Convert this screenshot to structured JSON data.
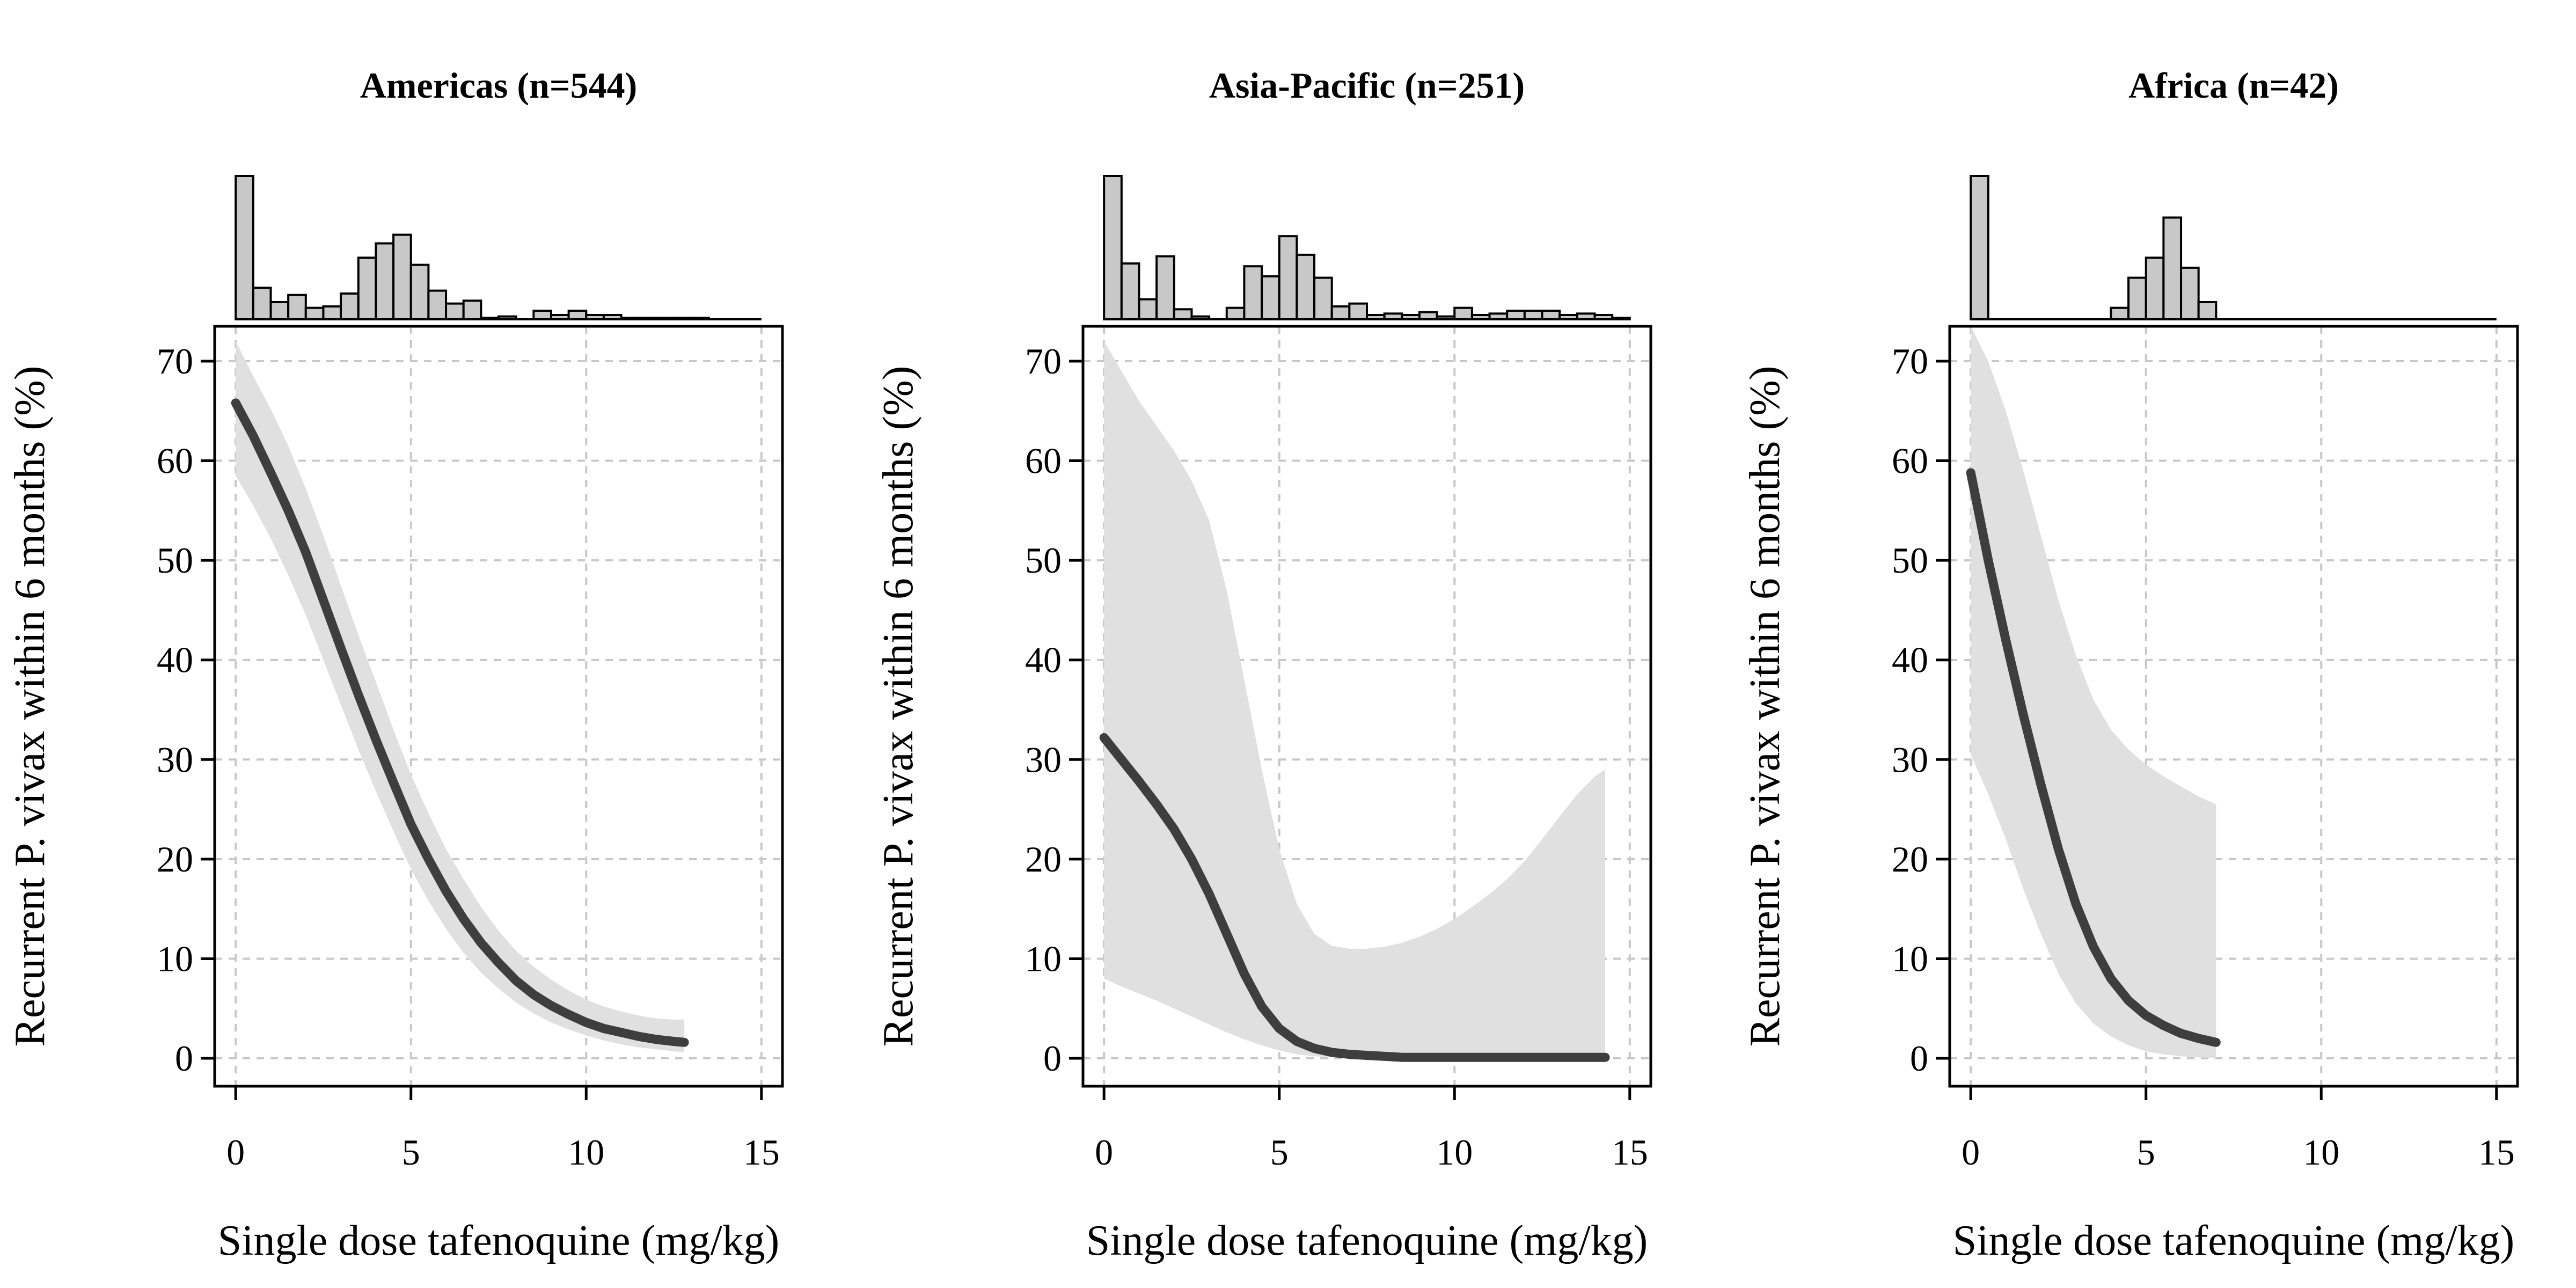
{
  "chart_data": [
    {
      "type": "line",
      "title": "Americas (n=544)",
      "xlabel": "Single dose tafenoquine (mg/kg)",
      "ylabel": "Recurrent P. vivax within 6 months (%)",
      "xlim": [
        -0.6,
        15.6
      ],
      "ylim": [
        -2.8,
        73.5
      ],
      "x_ticks": [
        0,
        5,
        10,
        15
      ],
      "y_ticks": [
        0,
        10,
        20,
        30,
        40,
        50,
        60,
        70
      ],
      "grid": true,
      "series": [
        {
          "x": [
            0,
            0.5,
            1,
            1.5,
            2,
            2.5,
            3,
            3.5,
            4,
            4.5,
            5,
            5.5,
            6,
            6.5,
            7,
            7.5,
            8,
            8.5,
            9,
            9.5,
            10,
            10.5,
            11,
            11.5,
            12,
            12.5,
            12.8
          ],
          "y": [
            65.8,
            62.5,
            58.8,
            55.0,
            50.8,
            46.0,
            41.2,
            36.5,
            32.0,
            27.7,
            23.5,
            20.0,
            16.8,
            14.0,
            11.6,
            9.6,
            7.8,
            6.4,
            5.3,
            4.4,
            3.6,
            3.0,
            2.6,
            2.2,
            1.9,
            1.7,
            1.6
          ],
          "lower": [
            58.5,
            55.5,
            52.2,
            48.5,
            44.5,
            40.0,
            35.5,
            31.0,
            26.8,
            22.8,
            19.0,
            15.8,
            13.0,
            10.6,
            8.6,
            7.0,
            5.6,
            4.5,
            3.6,
            2.9,
            2.3,
            1.8,
            1.4,
            1.1,
            0.9,
            0.7,
            0.6
          ],
          "upper": [
            72.0,
            68.5,
            65.2,
            61.5,
            57.2,
            52.5,
            47.5,
            42.5,
            37.8,
            33.0,
            28.5,
            24.6,
            21.0,
            18.0,
            15.2,
            12.8,
            10.8,
            9.2,
            7.9,
            6.8,
            5.9,
            5.2,
            4.7,
            4.3,
            4.0,
            3.9,
            3.9
          ]
        }
      ],
      "histogram": {
        "bin_width": 0.5,
        "counts": [
          100,
          22,
          12,
          17,
          8,
          9,
          18,
          43,
          53,
          59,
          38,
          20,
          11,
          13,
          1,
          2,
          0,
          6,
          3,
          6,
          3,
          3,
          1,
          1,
          1,
          1,
          1,
          0,
          0,
          0
        ]
      }
    },
    {
      "type": "line",
      "title": "Asia-Pacific (n=251)",
      "xlabel": "Single dose tafenoquine (mg/kg)",
      "ylabel": "Recurrent P. vivax within 6 months (%)",
      "xlim": [
        -0.6,
        15.6
      ],
      "ylim": [
        -2.8,
        73.5
      ],
      "x_ticks": [
        0,
        5,
        10,
        15
      ],
      "y_ticks": [
        0,
        10,
        20,
        30,
        40,
        50,
        60,
        70
      ],
      "grid": true,
      "series": [
        {
          "x": [
            0,
            0.5,
            1,
            1.5,
            2,
            2.5,
            3,
            3.5,
            4,
            4.5,
            5,
            5.5,
            6,
            6.5,
            7,
            7.5,
            8,
            8.5,
            9,
            9.5,
            10,
            10.5,
            11,
            11.5,
            12,
            12.5,
            13,
            13.5,
            14,
            14.3
          ],
          "y": [
            32.2,
            30.0,
            27.8,
            25.5,
            23.0,
            20.0,
            16.5,
            12.5,
            8.5,
            5.2,
            3.0,
            1.7,
            1.0,
            0.6,
            0.4,
            0.3,
            0.2,
            0.1,
            0.1,
            0.1,
            0.1,
            0.1,
            0.1,
            0.1,
            0.1,
            0.1,
            0.1,
            0.1,
            0.1,
            0.1
          ],
          "lower": [
            8.0,
            7.2,
            6.5,
            5.8,
            5.0,
            4.2,
            3.4,
            2.6,
            1.9,
            1.3,
            0.8,
            0.4,
            0.2,
            0.1,
            0.05,
            0,
            0,
            0,
            0,
            0,
            0,
            0,
            0,
            0,
            0,
            0,
            0,
            0,
            0,
            0
          ],
          "upper": [
            72.0,
            69.0,
            66.0,
            63.5,
            61.0,
            58.0,
            54.0,
            47.0,
            38.0,
            29.0,
            21.0,
            15.5,
            12.5,
            11.3,
            11.0,
            11.0,
            11.2,
            11.6,
            12.2,
            13.0,
            14.0,
            15.2,
            16.5,
            18.0,
            19.8,
            22.0,
            24.3,
            26.5,
            28.3,
            29.0
          ]
        }
      ],
      "histogram": {
        "bin_width": 0.5,
        "counts": [
          100,
          39,
          14,
          44,
          7,
          2,
          0,
          8,
          37,
          30,
          58,
          45,
          29,
          9,
          11,
          3,
          4,
          3,
          5,
          2,
          8,
          3,
          4,
          6,
          6,
          6,
          3,
          4,
          3,
          1
        ]
      }
    },
    {
      "type": "line",
      "title": "Africa (n=42)",
      "xlabel": "Single dose tafenoquine (mg/kg)",
      "ylabel": "Recurrent P. vivax within 6 months (%)",
      "xlim": [
        -0.6,
        15.6
      ],
      "ylim": [
        -2.8,
        73.5
      ],
      "x_ticks": [
        0,
        5,
        10,
        15
      ],
      "y_ticks": [
        0,
        10,
        20,
        30,
        40,
        50,
        60,
        70
      ],
      "grid": true,
      "series": [
        {
          "x": [
            0,
            0.5,
            1,
            1.5,
            2,
            2.5,
            3,
            3.5,
            4,
            4.5,
            5,
            5.5,
            6,
            6.5,
            7
          ],
          "y": [
            58.8,
            50.0,
            42.0,
            34.5,
            27.5,
            21.0,
            15.5,
            11.2,
            8.0,
            5.8,
            4.3,
            3.3,
            2.5,
            2.0,
            1.6
          ],
          "lower": [
            30.5,
            26.5,
            22.0,
            17.0,
            12.5,
            8.5,
            5.5,
            3.5,
            2.2,
            1.3,
            0.7,
            0.4,
            0.2,
            0.1,
            0.05
          ],
          "upper": [
            73.5,
            70.0,
            65.0,
            59.0,
            52.5,
            46.0,
            40.5,
            36.0,
            33.0,
            31.0,
            29.5,
            28.3,
            27.3,
            26.3,
            25.5
          ]
        }
      ],
      "histogram": {
        "bin_width": 0.5,
        "counts": [
          100,
          0,
          0,
          0,
          0,
          0,
          0,
          0,
          8,
          29,
          43,
          71,
          36,
          12,
          0,
          0,
          0,
          0,
          0,
          0,
          0,
          0,
          0,
          0,
          0,
          0,
          0,
          0,
          0,
          0
        ]
      }
    }
  ]
}
